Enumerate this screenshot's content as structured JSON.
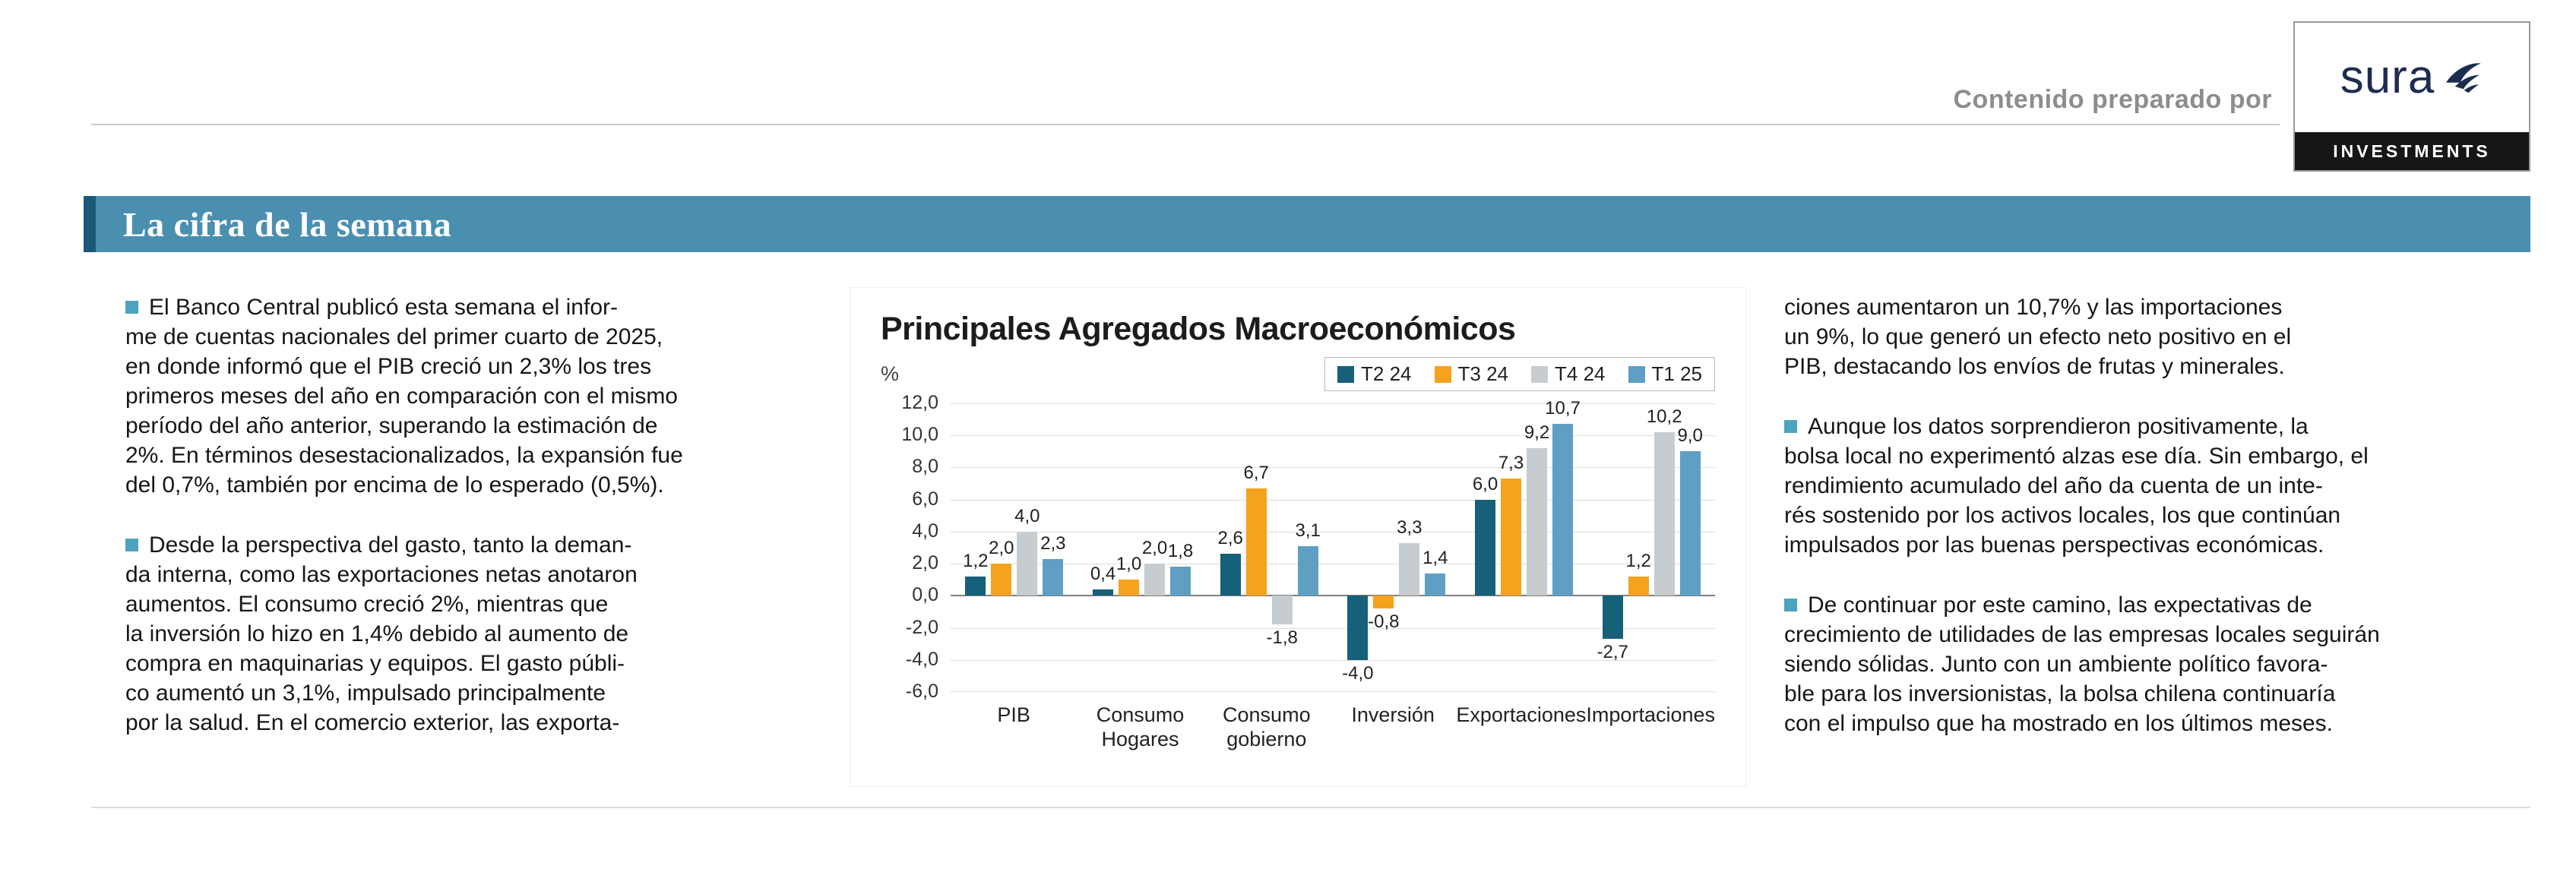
{
  "header": {
    "prepared_by": "Contenido preparado por",
    "logo": {
      "brand": "sura",
      "sub": "INVESTMENTS"
    },
    "section_title": "La cifra de la semana"
  },
  "colors": {
    "section_bar": "#4a8fb0",
    "section_accent": "#1b5a77",
    "bullet": "#4ca3bd",
    "logo_navy": "#1d2d50"
  },
  "columns": {
    "left": {
      "paragraphs": [
        {
          "text": "El Banco Central publicó esta semana el infor-\nme de cuentas nacionales del primer cuarto de 2025,\nen donde informó que el PIB creció un 2,3% los tres\nprimeros meses del año en comparación con el mismo\nperíodo del año anterior, superando la estimación de\n2%. En términos desestacionalizados, la expansión fue\ndel 0,7%, también por encima de lo esperado (0,5%)."
        },
        {
          "text": "Desde la perspectiva del gasto, tanto la deman-\nda interna, como las exportaciones netas anotaron\naumentos. El consumo creció 2%, mientras que\nla inversión lo hizo en 1,4% debido al aumento de\ncompra en maquinarias y equipos. El gasto públi-\nco aumentó un 3,1%, impulsado principalmente\npor la salud. En el comercio exterior, las exporta-"
        }
      ]
    },
    "right": {
      "paragraphs": [
        {
          "text": "ciones aumentaron un 10,7% y las importaciones\nun 9%, lo que generó un efecto neto positivo en el\nPIB, destacando los envíos de frutas y minerales."
        },
        {
          "text": "Aunque los datos sorprendieron positivamente, la\nbolsa local no experimentó alzas ese día. Sin embargo, el\nrendimiento acumulado del año da cuenta de un inte-\nrés sostenido por los activos locales, los que continúan\nimpulsados por las buenas perspectivas económicas."
        },
        {
          "text": "De continuar por este camino, las expectativas de\ncrecimiento de utilidades de las empresas locales seguirán\nsiendo sólidas. Junto con un ambiente político favora-\nble para los inversionistas, la bolsa chilena continuaría\ncon el impulso que ha mostrado en los últimos meses."
        }
      ]
    }
  },
  "chart_data": {
    "type": "bar",
    "title": "Principales Agregados Macroeconómicos",
    "ylabel": "%",
    "categories": [
      "PIB",
      "Consumo\nHogares",
      "Consumo\ngobierno",
      "Inversión",
      "Exportaciones",
      "Importaciones"
    ],
    "series": [
      {
        "name": "T2 24",
        "color": "#16607a",
        "values": [
          1.2,
          0.4,
          2.6,
          -4.0,
          6.0,
          -2.7
        ]
      },
      {
        "name": "T3 24",
        "color": "#f5a21f",
        "values": [
          2.0,
          1.0,
          6.7,
          -0.8,
          7.3,
          1.2
        ]
      },
      {
        "name": "T4 24",
        "color": "#c7ccd1",
        "values": [
          4.0,
          2.0,
          -1.8,
          3.3,
          9.2,
          10.2
        ]
      },
      {
        "name": "T1 25",
        "color": "#5f9fc4",
        "values": [
          2.3,
          1.8,
          3.1,
          1.4,
          10.7,
          9.0
        ]
      }
    ],
    "ylim": [
      -6,
      12
    ],
    "ytick_step": 2,
    "grid": true,
    "legend_position": "top-right",
    "decimal_separator": ","
  }
}
